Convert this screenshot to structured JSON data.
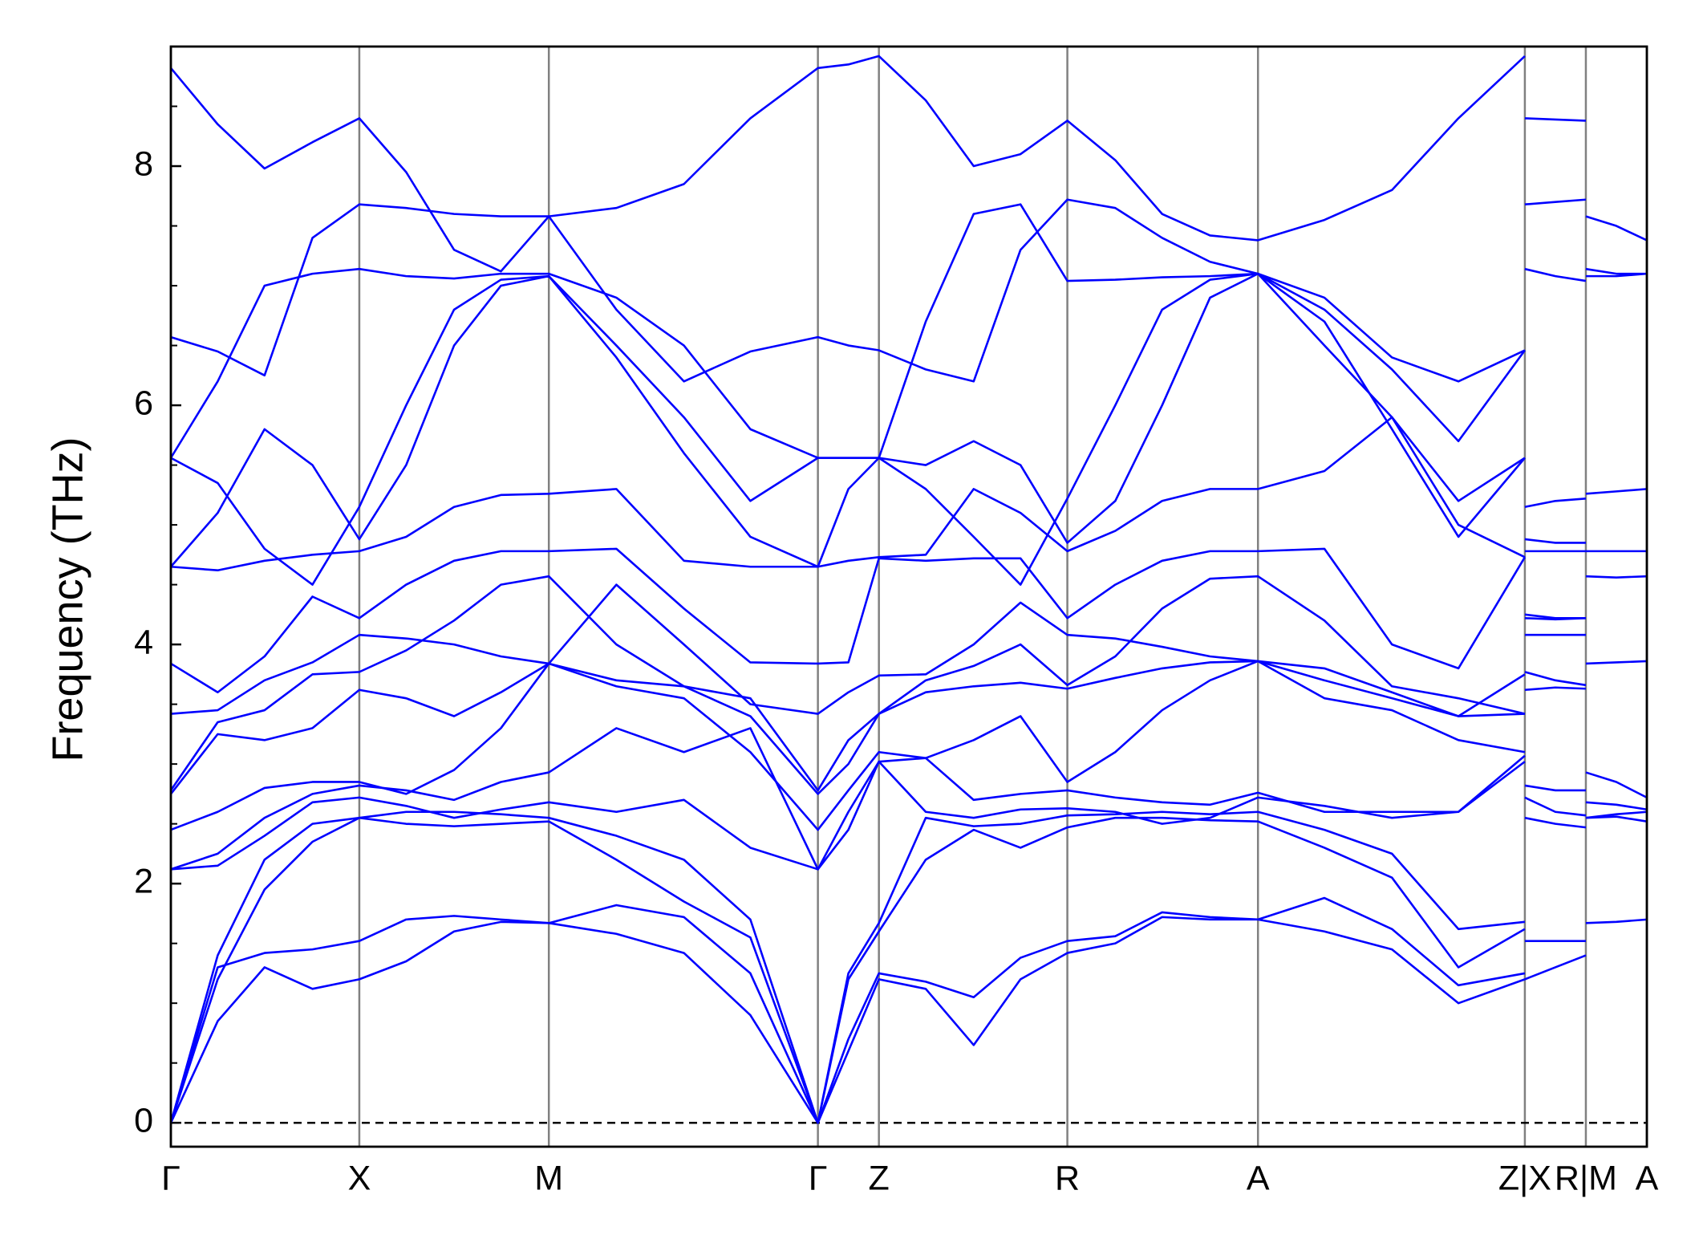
{
  "chart_data": {
    "type": "line",
    "ylabel": "Frequency (THz)",
    "color": "#0000ff",
    "xlim": [
      0,
      1355
    ],
    "ylim": [
      -0.2,
      9.0
    ],
    "xticks": [
      {
        "value": 0,
        "label": "Γ"
      },
      {
        "value": 173,
        "label": "X"
      },
      {
        "value": 347,
        "label": "M"
      },
      {
        "value": 594,
        "label": "Γ"
      },
      {
        "value": 650,
        "label": "Z"
      },
      {
        "value": 823,
        "label": "R"
      },
      {
        "value": 998,
        "label": "A"
      },
      {
        "value": 1243,
        "label": "Z|X"
      },
      {
        "value": 1299,
        "label": "R|M"
      },
      {
        "value": 1355,
        "label": "A"
      }
    ],
    "yticks": [
      0,
      2,
      4,
      6,
      8
    ],
    "yminorticks": [
      0.5,
      1,
      1.5,
      2.5,
      3,
      3.5,
      4.5,
      5,
      5.5,
      6.5,
      7,
      7.5,
      8.5
    ],
    "hline": 0,
    "x": [
      0,
      43,
      86,
      130,
      173,
      216,
      260,
      303,
      347,
      409,
      471,
      532,
      594,
      622,
      650,
      693,
      737,
      780,
      823,
      867,
      910,
      954,
      998,
      1059,
      1121,
      1182,
      1243,
      1243,
      1243,
      1271,
      1299,
      1299,
      1299,
      1327,
      1355
    ],
    "series": [
      {
        "values": [
          0,
          0.85,
          1.3,
          1.12,
          1.2,
          1.35,
          1.6,
          1.68,
          1.67,
          1.58,
          1.42,
          0.9,
          0,
          0.6,
          1.2,
          1.12,
          0.65,
          1.2,
          1.42,
          1.5,
          1.72,
          1.7,
          1.7,
          1.6,
          1.45,
          1.0,
          1.2,
          null,
          1.2,
          1.3,
          1.4,
          null,
          1.67,
          1.68,
          1.7
        ]
      },
      {
        "values": [
          0,
          1.3,
          1.42,
          1.45,
          1.52,
          1.7,
          1.73,
          1.7,
          1.67,
          1.82,
          1.72,
          1.25,
          0,
          0.7,
          1.25,
          1.18,
          1.05,
          1.38,
          1.52,
          1.56,
          1.76,
          1.72,
          1.7,
          1.88,
          1.62,
          1.15,
          1.25,
          null,
          1.52,
          1.52,
          1.52,
          null,
          2.55,
          2.56,
          2.52
        ]
      },
      {
        "values": [
          0,
          1.2,
          1.95,
          2.35,
          2.55,
          2.5,
          2.48,
          2.5,
          2.52,
          2.2,
          1.85,
          1.55,
          0,
          1.2,
          1.6,
          2.2,
          2.45,
          2.3,
          2.47,
          2.55,
          2.55,
          2.53,
          2.52,
          2.3,
          2.05,
          1.3,
          1.62,
          null,
          2.55,
          2.5,
          2.47,
          null,
          2.55,
          2.58,
          2.6
        ]
      },
      {
        "values": [
          0,
          1.4,
          2.2,
          2.5,
          2.55,
          2.6,
          2.6,
          2.58,
          2.55,
          2.4,
          2.2,
          1.7,
          0,
          1.25,
          1.67,
          2.55,
          2.48,
          2.5,
          2.57,
          2.58,
          2.6,
          2.58,
          2.6,
          2.45,
          2.25,
          1.62,
          1.68,
          null,
          2.72,
          2.6,
          2.57,
          null,
          2.68,
          2.66,
          2.62
        ]
      },
      {
        "values": [
          2.12,
          2.15,
          2.4,
          2.68,
          2.72,
          2.65,
          2.55,
          2.62,
          2.68,
          2.6,
          2.7,
          2.3,
          2.12,
          2.45,
          3.02,
          2.6,
          2.55,
          2.62,
          2.63,
          2.6,
          2.5,
          2.55,
          2.72,
          2.65,
          2.55,
          2.6,
          3.02,
          null,
          2.82,
          2.78,
          2.78,
          null,
          2.93,
          2.85,
          2.72
        ]
      },
      {
        "values": [
          2.12,
          2.25,
          2.55,
          2.75,
          2.82,
          2.78,
          2.7,
          2.85,
          2.93,
          3.3,
          3.1,
          3.3,
          2.12,
          2.6,
          3.02,
          3.05,
          2.7,
          2.75,
          2.78,
          2.72,
          2.68,
          2.66,
          2.76,
          2.6,
          2.6,
          2.6,
          3.07,
          null,
          3.62,
          3.64,
          3.63,
          null,
          3.84,
          3.85,
          3.86
        ]
      },
      {
        "values": [
          2.45,
          2.6,
          2.8,
          2.85,
          2.85,
          2.75,
          2.95,
          3.3,
          3.84,
          3.65,
          3.55,
          3.1,
          2.45,
          2.78,
          3.1,
          3.05,
          3.2,
          3.4,
          2.85,
          3.1,
          3.45,
          3.7,
          3.86,
          3.55,
          3.45,
          3.2,
          3.1,
          null,
          3.77,
          3.7,
          3.66,
          null,
          4.57,
          4.56,
          4.57
        ]
      },
      {
        "values": [
          2.75,
          3.25,
          3.2,
          3.3,
          3.62,
          3.55,
          3.4,
          3.6,
          3.84,
          3.7,
          3.65,
          3.4,
          2.75,
          3.0,
          3.42,
          3.6,
          3.65,
          3.68,
          3.63,
          3.72,
          3.8,
          3.85,
          3.86,
          3.7,
          3.55,
          3.4,
          3.42,
          null,
          4.08,
          4.08,
          4.08,
          null,
          4.78,
          4.78,
          4.78
        ]
      },
      {
        "values": [
          2.78,
          3.35,
          3.45,
          3.75,
          3.77,
          3.95,
          4.2,
          4.5,
          4.57,
          4.0,
          3.65,
          3.55,
          2.78,
          3.2,
          3.42,
          3.7,
          3.82,
          4.0,
          3.66,
          3.9,
          4.3,
          4.55,
          4.57,
          4.2,
          3.65,
          3.55,
          3.42,
          null,
          4.22,
          4.21,
          4.22,
          null,
          5.26,
          5.28,
          5.3
        ]
      },
      {
        "values": [
          3.42,
          3.45,
          3.7,
          3.85,
          4.08,
          4.05,
          4.0,
          3.9,
          3.84,
          4.5,
          4.0,
          3.5,
          3.42,
          3.6,
          3.74,
          3.75,
          4.0,
          4.35,
          4.08,
          4.05,
          3.98,
          3.9,
          3.86,
          3.8,
          3.6,
          3.4,
          3.75,
          null,
          4.25,
          4.22,
          4.22,
          null,
          7.08,
          7.08,
          7.1
        ]
      },
      {
        "values": [
          3.84,
          3.6,
          3.9,
          4.4,
          4.22,
          4.5,
          4.7,
          4.78,
          4.78,
          4.8,
          4.3,
          3.85,
          3.84,
          3.85,
          4.72,
          4.7,
          4.72,
          4.72,
          4.22,
          4.5,
          4.7,
          4.78,
          4.78,
          4.8,
          4.0,
          3.8,
          4.73,
          null,
          4.78,
          4.78,
          4.78,
          null,
          7.14,
          7.1,
          7.1
        ]
      },
      {
        "values": [
          4.65,
          4.62,
          4.7,
          4.75,
          4.78,
          4.9,
          5.15,
          5.25,
          5.26,
          5.3,
          4.7,
          4.65,
          4.65,
          4.7,
          4.73,
          4.75,
          5.3,
          5.1,
          4.78,
          4.95,
          5.2,
          5.3,
          5.3,
          5.45,
          5.9,
          5.0,
          4.73,
          null,
          4.88,
          4.85,
          4.85,
          null,
          7.58,
          7.5,
          7.38
        ]
      },
      {
        "values": [
          4.65,
          5.1,
          5.8,
          5.5,
          4.88,
          5.5,
          6.5,
          7.0,
          7.08,
          6.4,
          5.6,
          4.9,
          4.65,
          5.3,
          5.56,
          5.5,
          5.7,
          5.5,
          4.85,
          5.2,
          6.0,
          6.9,
          7.1,
          6.7,
          5.8,
          4.9,
          5.56,
          null,
          5.15,
          5.2,
          5.22,
          null,
          null,
          null,
          null
        ]
      },
      {
        "values": [
          5.56,
          5.35,
          4.8,
          4.5,
          5.15,
          6.0,
          6.8,
          7.05,
          7.08,
          6.5,
          5.9,
          5.2,
          5.56,
          5.56,
          5.56,
          5.3,
          4.9,
          4.5,
          5.22,
          6.0,
          6.8,
          7.05,
          7.1,
          6.5,
          5.9,
          5.2,
          5.56,
          null,
          7.14,
          7.08,
          7.04,
          null,
          null,
          null,
          null
        ]
      },
      {
        "values": [
          5.56,
          6.2,
          7.0,
          7.1,
          7.14,
          7.08,
          7.06,
          7.1,
          7.1,
          6.9,
          6.5,
          5.8,
          5.56,
          5.56,
          5.56,
          6.7,
          7.6,
          7.68,
          7.04,
          7.05,
          7.07,
          7.08,
          7.1,
          6.8,
          6.3,
          5.7,
          6.46,
          null,
          7.68,
          7.7,
          7.72,
          null,
          null,
          null,
          null
        ]
      },
      {
        "values": [
          6.57,
          6.45,
          6.25,
          7.4,
          7.68,
          7.65,
          7.6,
          7.58,
          7.58,
          6.8,
          6.2,
          6.45,
          6.57,
          6.5,
          6.46,
          6.3,
          6.2,
          7.3,
          7.72,
          7.65,
          7.4,
          7.2,
          7.1,
          6.9,
          6.4,
          6.2,
          6.46,
          null,
          8.4,
          8.39,
          8.38,
          null,
          null,
          null,
          null
        ]
      },
      {
        "values": [
          8.82,
          8.35,
          7.98,
          8.2,
          8.4,
          7.95,
          7.3,
          7.12,
          7.58,
          7.65,
          7.85,
          8.4,
          8.82,
          8.85,
          8.92,
          8.55,
          8.0,
          8.1,
          8.38,
          8.05,
          7.6,
          7.42,
          7.38,
          7.55,
          7.8,
          8.4,
          8.92,
          null,
          null,
          null,
          null,
          null,
          null,
          null,
          null
        ]
      }
    ]
  }
}
